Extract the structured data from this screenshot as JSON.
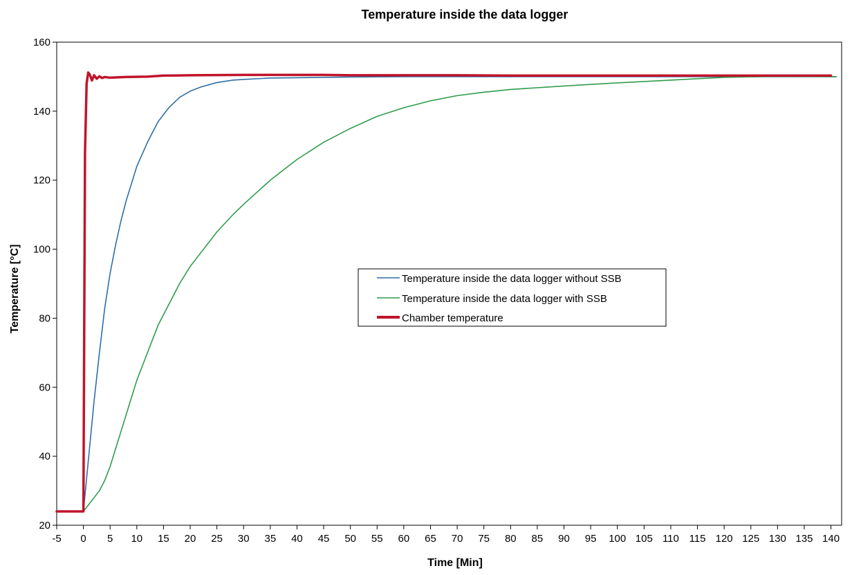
{
  "chart_data": {
    "type": "line",
    "title": "Temperature inside the data logger",
    "xlabel": "Time [Min]",
    "ylabel": "Temperature [°C]",
    "xlim": [
      -5,
      142
    ],
    "ylim": [
      20,
      160
    ],
    "xticks": [
      "-5",
      "0",
      "5",
      "10",
      "15",
      "20",
      "25",
      "30",
      "35",
      "40",
      "45",
      "50",
      "55",
      "60",
      "65",
      "70",
      "75",
      "80",
      "85",
      "90",
      "95",
      "100",
      "105",
      "110",
      "115",
      "120",
      "125",
      "130",
      "135",
      "140"
    ],
    "yticks": [
      "20",
      "40",
      "60",
      "80",
      "100",
      "120",
      "140",
      "160"
    ],
    "grid": false,
    "legend_position": "center-right",
    "series": [
      {
        "name": "Temperature inside the data logger without SSB",
        "color": "#2e6ea7",
        "x": [
          -5,
          0,
          1,
          2,
          3,
          4,
          5,
          6,
          7,
          8,
          9,
          10,
          12,
          14,
          16,
          18,
          20,
          22,
          25,
          28,
          30,
          35,
          40,
          50,
          60,
          80,
          100,
          120,
          141
        ],
        "y": [
          24,
          24,
          40,
          56,
          70,
          83,
          93,
          101,
          108,
          114,
          119,
          124,
          131,
          137,
          141,
          144,
          145.8,
          147,
          148.3,
          149,
          149.2,
          149.6,
          149.7,
          149.9,
          150,
          150,
          150,
          150,
          150
        ]
      },
      {
        "name": "Temperature inside the data logger with SSB",
        "color": "#2e9c4a",
        "x": [
          -5,
          0,
          1,
          2,
          3,
          4,
          5,
          6,
          7,
          8,
          9,
          10,
          12,
          14,
          16,
          18,
          20,
          22,
          25,
          28,
          30,
          35,
          40,
          45,
          50,
          55,
          60,
          65,
          70,
          75,
          80,
          90,
          100,
          110,
          120,
          130,
          141
        ],
        "y": [
          24,
          24,
          26,
          28,
          30,
          33,
          37,
          42,
          47,
          52,
          57,
          62,
          70,
          78,
          84,
          90,
          95,
          99,
          105,
          110,
          113,
          120,
          126,
          131,
          135,
          138.5,
          141,
          143,
          144.5,
          145.5,
          146.3,
          147.3,
          148.2,
          149,
          149.8,
          150.1,
          150
        ]
      },
      {
        "name": "Chamber temperature",
        "color": "#c0142b",
        "x": [
          -5,
          -0.2,
          0,
          0.3,
          0.6,
          0.9,
          1.2,
          1.6,
          2,
          2.5,
          3,
          3.5,
          4,
          5,
          8,
          12,
          15,
          20,
          30,
          40,
          45,
          50,
          60,
          70,
          80,
          90,
          100,
          110,
          120,
          130,
          140
        ],
        "y": [
          24,
          24,
          24,
          128,
          148,
          151.2,
          150.6,
          148.9,
          150.4,
          149.4,
          150.1,
          149.6,
          149.9,
          149.7,
          149.9,
          150.0,
          150.3,
          150.4,
          150.5,
          150.5,
          150.5,
          150.4,
          150.4,
          150.4,
          150.3,
          150.3,
          150.3,
          150.3,
          150.3,
          150.3,
          150.3
        ]
      }
    ]
  }
}
